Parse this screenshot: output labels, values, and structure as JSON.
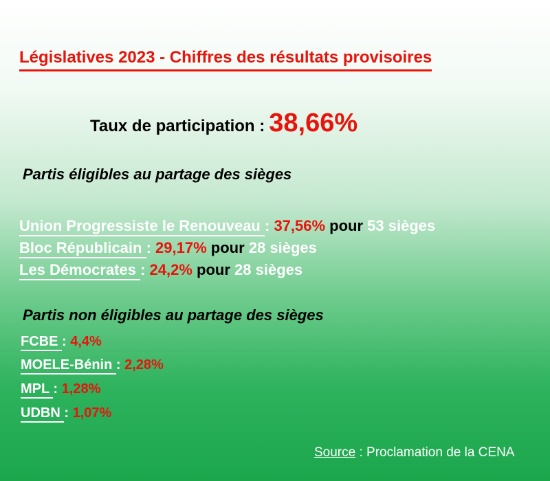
{
  "title": "Législatives 2023 - Chiffres des résultats provisoires",
  "participation": {
    "label": "Taux de participation :",
    "value": "38,66%"
  },
  "eligible": {
    "heading": "Partis éligibles au partage des sièges",
    "parties": [
      {
        "name": "Union Progressiste le Renouveau ",
        "sep": ": ",
        "pct": "37,56%",
        "pour": " pour ",
        "seats": "53 sièges"
      },
      {
        "name": "Bloc Républicain ",
        "sep": ": ",
        "pct": "29,17%",
        "pour": " pour ",
        "seats": "28 sièges"
      },
      {
        "name": "Les Démocrates ",
        "sep": ": ",
        "pct": "24,2%",
        "pour": " pour ",
        "seats": "28 sièges"
      }
    ]
  },
  "non_eligible": {
    "heading": "Partis non éligibles au partage des sièges",
    "parties": [
      {
        "name": "FCBE ",
        "sep": ": ",
        "pct": "4,4%"
      },
      {
        "name": "MOELE-Bénin ",
        "sep": ": ",
        "pct": "2,28%"
      },
      {
        "name": "MPL ",
        "sep": ": ",
        "pct": "1,28%"
      },
      {
        "name": "UDBN ",
        "sep": ": ",
        "pct": "1,07%"
      }
    ]
  },
  "source": {
    "label": "Source",
    "text": " : Proclamation de la CENA"
  },
  "colors": {
    "accent_red": "#e8140c",
    "background_green": "#1ba64c"
  }
}
